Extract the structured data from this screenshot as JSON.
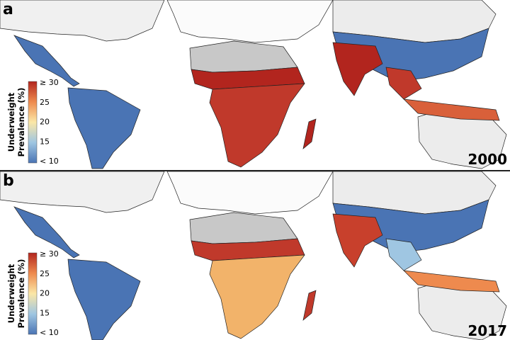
{
  "panels": [
    {
      "label": "a",
      "year": "2000"
    },
    {
      "label": "b",
      "year": "2017"
    }
  ],
  "legend": {
    "title": [
      "Underweight",
      "Prevalence (%)"
    ],
    "ticks": [
      "≥ 30",
      "25",
      "20",
      "15",
      "< 10"
    ]
  }
}
